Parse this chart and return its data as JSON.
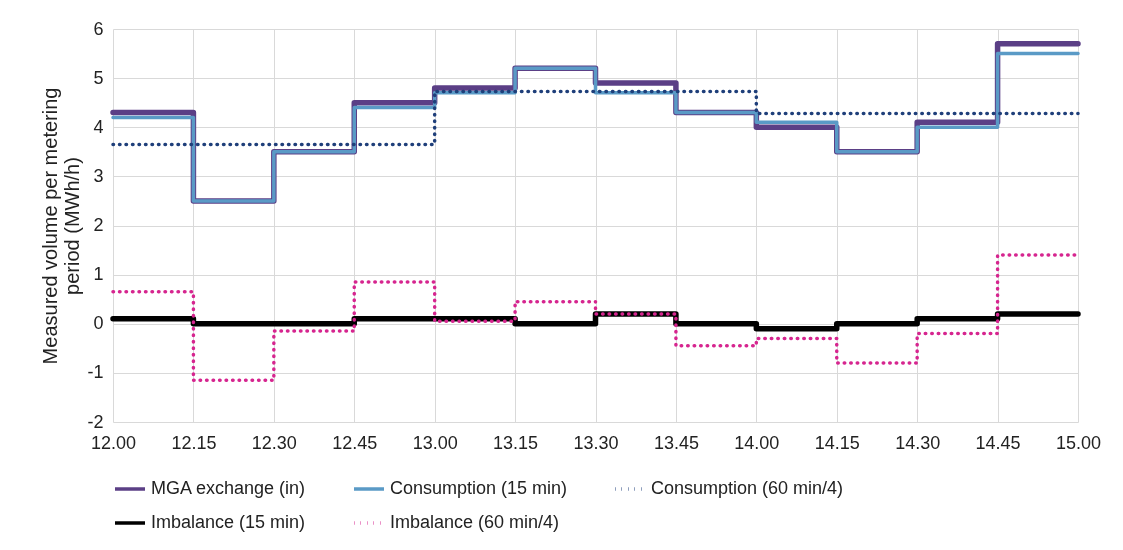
{
  "chart_data": {
    "type": "step",
    "ylabel": "Measured volume per metering period (MWh/h)",
    "categories": [
      "12.00",
      "12.15",
      "12.30",
      "12.45",
      "13.00",
      "13.15",
      "13.30",
      "13.45",
      "14.00",
      "14.15",
      "14.30",
      "14.45",
      "15.00"
    ],
    "series": [
      {
        "name": "MGA exchange (in)",
        "color": "#5b3f86",
        "line_style": "solid",
        "values": [
          4.3,
          2.5,
          3.5,
          4.5,
          4.8,
          5.2,
          4.9,
          4.3,
          4.0,
          3.5,
          4.1,
          5.7,
          5.7
        ]
      },
      {
        "name": "Consumption (15 min)",
        "color": "#5a9ac6",
        "line_style": "solid",
        "values": [
          4.2,
          2.5,
          3.5,
          4.4,
          4.7,
          5.2,
          4.7,
          4.3,
          4.1,
          3.5,
          4.0,
          5.5,
          5.5
        ]
      },
      {
        "name": "Consumption (60 min/4)",
        "color": "#1f3f7a",
        "line_style": "dotted",
        "x": [
          "12.00",
          "13.00",
          "14.00",
          "15.00"
        ],
        "values": [
          3.65,
          4.73,
          4.28,
          4.28
        ]
      },
      {
        "name": "Imbalance (15 min)",
        "color": "#000000",
        "line_style": "solid",
        "values": [
          0.1,
          0,
          0,
          0.1,
          0.1,
          0,
          0.2,
          0,
          -0.1,
          0,
          0.1,
          0.2,
          0.2
        ]
      },
      {
        "name": "Imbalance (60 min/4)",
        "color": "#d6258f",
        "line_style": "dotted",
        "values": [
          0.65,
          -1.15,
          -0.15,
          0.85,
          0.05,
          0.45,
          0.2,
          -0.45,
          -0.3,
          -0.8,
          -0.2,
          1.4,
          1.4
        ]
      }
    ],
    "ylim": [
      -2,
      6
    ],
    "yticks": [
      -2,
      -1,
      0,
      1,
      2,
      3,
      4,
      5,
      6
    ],
    "grid": true,
    "legend": "bottom"
  }
}
